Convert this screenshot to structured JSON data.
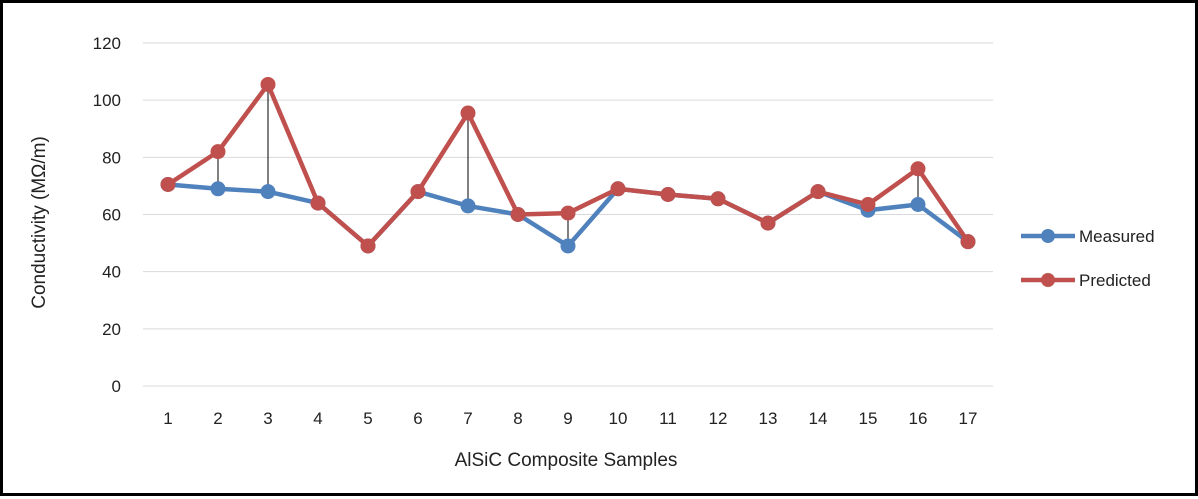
{
  "chart_data": {
    "type": "line",
    "title": "",
    "xlabel": "AlSiC Composite Samples",
    "ylabel": "Conductivity (MΩ/m)",
    "categories": [
      "1",
      "2",
      "3",
      "4",
      "5",
      "6",
      "7",
      "8",
      "9",
      "10",
      "11",
      "12",
      "13",
      "14",
      "15",
      "16",
      "17"
    ],
    "ylim": [
      0,
      120
    ],
    "yticks": [
      "0",
      "20",
      "40",
      "60",
      "80",
      "100",
      "120"
    ],
    "grid": true,
    "legend_position": "right",
    "series": [
      {
        "name": "Measured",
        "color": "#4F81BD",
        "values": [
          70.5,
          69,
          68,
          64,
          49,
          68,
          63,
          60,
          49,
          69,
          67,
          65.5,
          57,
          68,
          61.5,
          63.5,
          50.5
        ]
      },
      {
        "name": "Predicted",
        "color": "#C0504D",
        "values": [
          70.5,
          82,
          105.5,
          64,
          49,
          68,
          95.5,
          60,
          60.5,
          69,
          67,
          65.5,
          57,
          68,
          63.5,
          76,
          50.5
        ]
      }
    ],
    "connector_color": "#000000"
  }
}
